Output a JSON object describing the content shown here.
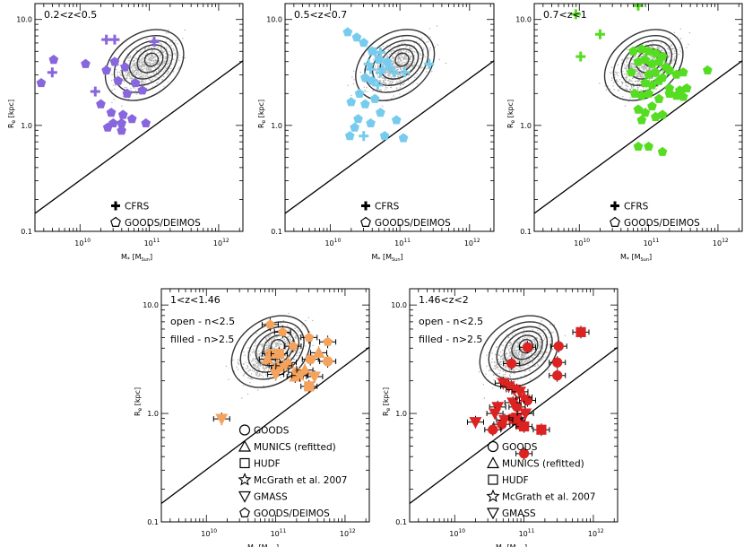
{
  "figure": {
    "xlabel": "M* [Msun]",
    "ylabel": "Re [kpc]",
    "x_log_range": [
      9.35,
      12.35
    ],
    "y_log_range": [
      -1,
      1.15
    ],
    "x_tick_labels": [
      "10^10",
      "10^11",
      "10^12"
    ],
    "y_tick_labels": [
      "0.1",
      "1.0",
      "10.0"
    ]
  },
  "chart_data": [
    {
      "type": "scatter",
      "title": "0.2<z<0.5",
      "color": "#8866dd",
      "legend": [
        "CFRS",
        "GOODS/DEIMOS"
      ],
      "series": [
        {
          "name": "CFRS",
          "marker": "cross",
          "x": [
            9.6,
            10.38,
            10.5,
            11.07,
            10.22
          ],
          "y": [
            0.5,
            0.81,
            0.81,
            0.79,
            0.32
          ]
        },
        {
          "name": "GOODS/DEIMOS",
          "marker": "pentagon",
          "x": [
            9.44,
            9.62,
            10.08,
            10.38,
            10.5,
            10.65,
            10.55,
            10.68,
            10.8,
            10.9,
            10.62,
            10.45,
            10.3,
            10.6,
            10.95,
            10.75,
            10.4,
            10.48,
            10.6
          ],
          "y": [
            0.4,
            0.62,
            0.58,
            0.52,
            0.6,
            0.55,
            0.42,
            0.3,
            0.4,
            0.33,
            0.1,
            0.12,
            0.2,
            0.02,
            0.02,
            0.06,
            -0.02,
            0.02,
            -0.05
          ]
        }
      ],
      "reference_line": {
        "x": [
          9.35,
          12.35
        ],
        "y": [
          -0.83,
          0.61
        ]
      }
    },
    {
      "type": "scatter",
      "title": "0.5<z<0.7",
      "color": "#77ccee",
      "legend": [
        "CFRS",
        "GOODS/DEIMOS"
      ],
      "series": [
        {
          "name": "CFRS",
          "marker": "cross",
          "x": [
            10.65,
            10.72,
            10.55,
            10.58,
            10.75,
            10.86,
            10.72,
            10.92,
            11.07,
            11.42,
            10.68,
            10.48
          ],
          "y": [
            0.69,
            0.69,
            0.58,
            0.53,
            0.53,
            0.55,
            0.5,
            0.5,
            0.5,
            0.58,
            0.38,
            -0.1
          ]
        },
        {
          "name": "GOODS/DEIMOS",
          "marker": "pentagon",
          "x": [
            10.25,
            10.38,
            10.48,
            10.6,
            10.7,
            10.82,
            10.5,
            10.6,
            10.42,
            10.3,
            10.5,
            10.64,
            10.72,
            10.95,
            10.4,
            10.58,
            10.28,
            10.78,
            11.05,
            10.35
          ],
          "y": [
            0.88,
            0.83,
            0.78,
            0.7,
            0.62,
            0.6,
            0.45,
            0.42,
            0.3,
            0.22,
            0.2,
            0.25,
            0.12,
            0.05,
            0.06,
            0.02,
            -0.1,
            -0.1,
            -0.12,
            -0.02
          ]
        }
      ],
      "reference_line": {
        "x": [
          9.35,
          12.35
        ],
        "y": [
          -0.83,
          0.61
        ]
      }
    },
    {
      "type": "scatter",
      "title": "0.7<z<1",
      "color": "#55dd22",
      "legend": [
        "CFRS",
        "GOODS/DEIMOS"
      ],
      "series": [
        {
          "name": "CFRS",
          "marker": "cross",
          "x": [
            9.95,
            10.3,
            10.85,
            10.02
          ],
          "y": [
            1.05,
            0.86,
            1.13,
            0.65
          ]
        },
        {
          "name": "GOODS/DEIMOS",
          "marker": "pentagon",
          "x": [
            10.78,
            10.9,
            11.0,
            11.1,
            11.2,
            10.85,
            10.95,
            11.05,
            11.15,
            11.25,
            11.3,
            10.75,
            11.0,
            11.1,
            11.2,
            11.4,
            11.5,
            10.95,
            11.05,
            11.15,
            11.3,
            10.8,
            10.9,
            11.0,
            11.15,
            11.3,
            11.4,
            11.45,
            11.5,
            11.55,
            11.85,
            10.85,
            10.95,
            11.05,
            11.2,
            10.9,
            11.1,
            11.0,
            11.2,
            10.85
          ],
          "y": [
            0.7,
            0.72,
            0.7,
            0.68,
            0.65,
            0.6,
            0.62,
            0.58,
            0.6,
            0.55,
            0.52,
            0.5,
            0.48,
            0.5,
            0.45,
            0.48,
            0.5,
            0.4,
            0.38,
            0.42,
            0.35,
            0.3,
            0.28,
            0.3,
            0.25,
            0.3,
            0.28,
            0.33,
            0.27,
            0.35,
            0.52,
            0.15,
            0.12,
            0.18,
            0.1,
            0.05,
            0.08,
            -0.2,
            -0.25,
            -0.2
          ]
        }
      ],
      "reference_line": {
        "x": [
          9.35,
          12.35
        ],
        "y": [
          -0.83,
          0.61
        ]
      }
    },
    {
      "type": "scatter",
      "title": "1<z<1.46",
      "color": "#f5a35c",
      "annotations": [
        "open - n<2.5",
        "filled - n>2.5"
      ],
      "legend": [
        "GOODS",
        "MUNICS (refitted)",
        "HUDF",
        "McGrath et al. 2007",
        "GMASS",
        "GOODS/DEIMOS"
      ],
      "series": [
        {
          "name": "GOODS/DEIMOS",
          "marker": "pentagon",
          "x": [
            10.92,
            11.1,
            11.25,
            11.48,
            11.75
          ],
          "y": [
            0.82,
            0.75,
            0.62,
            0.7,
            0.66
          ]
        },
        {
          "name": "GOODS",
          "marker": "circle",
          "x": [
            10.92,
            11.05,
            11.3,
            11.5,
            11.75
          ],
          "y": [
            0.55,
            0.42,
            0.38,
            0.5,
            0.48
          ]
        },
        {
          "name": "MUNICS (refitted)",
          "marker": "triangle",
          "x": [
            10.88,
            11.02,
            11.18,
            11.28,
            11.42,
            11.62
          ],
          "y": [
            0.5,
            0.44,
            0.47,
            0.34,
            0.4,
            0.56
          ]
        },
        {
          "name": "HUDF",
          "marker": "square",
          "x": [
            11.05,
            11.48
          ],
          "y": [
            0.55,
            0.25
          ]
        },
        {
          "name": "McGrath et al. 2007",
          "marker": "star",
          "x": [
            11.12,
            11.35
          ],
          "y": [
            0.44,
            0.35
          ]
        },
        {
          "name": "GMASS",
          "marker": "triangle-down",
          "x": [
            11.0,
            10.22,
            11.56
          ],
          "y": [
            0.36,
            -0.05,
            0.34
          ]
        }
      ],
      "reference_line": {
        "x": [
          9.35,
          12.35
        ],
        "y": [
          -0.83,
          0.61
        ]
      }
    },
    {
      "type": "scatter",
      "title": "1.46<z<2",
      "color": "#dd2222",
      "annotations": [
        "open - n<2.5",
        "filled - n>2.5"
      ],
      "legend": [
        "GOODS",
        "MUNICS (refitted)",
        "HUDF",
        "McGrath et al. 2007",
        "GMASS"
      ],
      "series": [
        {
          "name": "GOODS",
          "marker": "circle",
          "x": [
            10.82,
            11.05,
            11.5,
            11.48,
            11.48,
            11.05,
            11.0,
            10.68,
            10.55,
            10.9
          ],
          "y": [
            0.46,
            0.61,
            0.62,
            0.47,
            0.35,
            0.12,
            -0.37,
            -0.1,
            -0.15,
            0.06
          ]
        },
        {
          "name": "HUDF",
          "marker": "square",
          "x": [
            11.82,
            11.25,
            10.95,
            10.85,
            11.0
          ],
          "y": [
            0.75,
            -0.15,
            -0.1,
            -0.05,
            -0.12
          ]
        },
        {
          "name": "GMASS",
          "marker": "triangle-down",
          "x": [
            10.7,
            10.78,
            10.86,
            10.94,
            10.84,
            10.62,
            10.58,
            10.72,
            10.9,
            11.02,
            10.3
          ],
          "y": [
            0.28,
            0.25,
            0.22,
            0.2,
            0.1,
            0.06,
            0.0,
            -0.06,
            -0.04,
            0.0,
            -0.08
          ]
        },
        {
          "name": "McGrath et al. 2007",
          "marker": "star",
          "x": [
            11.0
          ],
          "y": [
            0.15
          ]
        }
      ],
      "reference_line": {
        "x": [
          9.35,
          12.35
        ],
        "y": [
          -0.83,
          0.61
        ]
      }
    }
  ]
}
